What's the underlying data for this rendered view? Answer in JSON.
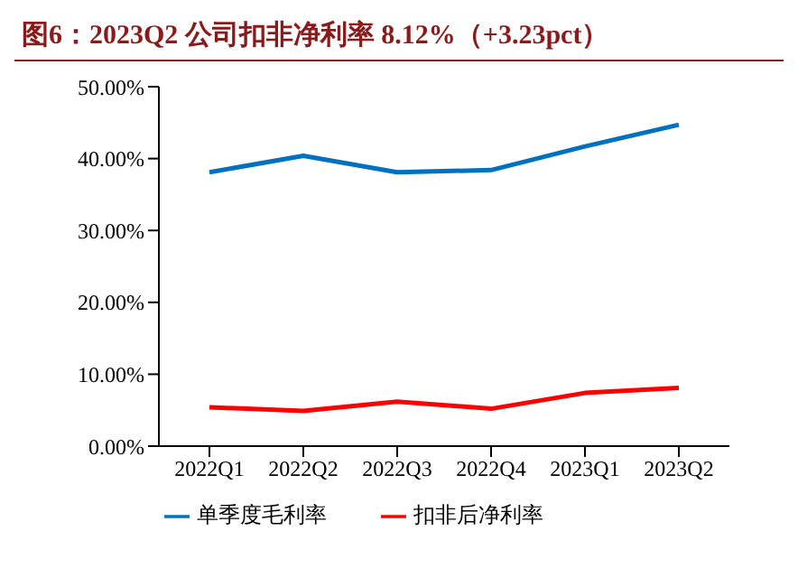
{
  "chart_data": {
    "type": "line",
    "title": "图6：2023Q2 公司扣非净利率 8.12%（+3.23pct）",
    "categories": [
      "2022Q1",
      "2022Q2",
      "2022Q3",
      "2022Q4",
      "2023Q1",
      "2023Q2"
    ],
    "series": [
      {
        "name": "单季度毛利率",
        "color": "#0070c0",
        "values": [
          38.1,
          40.4,
          38.1,
          38.4,
          41.7,
          44.7
        ]
      },
      {
        "name": "扣非后净利率",
        "color": "#ff0000",
        "values": [
          5.4,
          4.9,
          6.2,
          5.2,
          7.4,
          8.1
        ]
      }
    ],
    "ylim": [
      0,
      50
    ],
    "yticks": [
      {
        "value": 0,
        "label": "0.00%"
      },
      {
        "value": 10,
        "label": "10.00%"
      },
      {
        "value": 20,
        "label": "20.00%"
      },
      {
        "value": 30,
        "label": "30.00%"
      },
      {
        "value": 40,
        "label": "40.00%"
      },
      {
        "value": 50,
        "label": "50.00%"
      }
    ],
    "grid": false,
    "legend": "bottom",
    "marker": "none",
    "line_style": "solid"
  }
}
